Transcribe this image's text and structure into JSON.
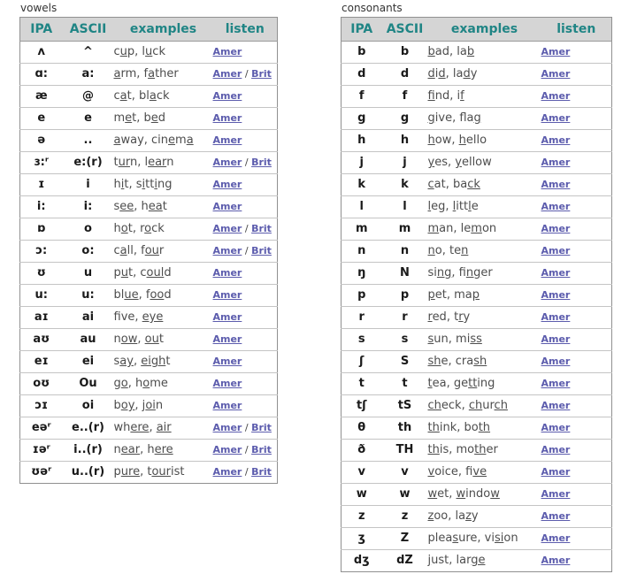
{
  "colors": {
    "header_bg": "#d5d5d5",
    "header_text": "#208585",
    "link": "#5c5cad",
    "example_text": "#4d4d4d",
    "symbol_text": "#1a1a1a",
    "outer_border": "#909090",
    "row_divider": "#c4c4c4",
    "label_text": "#333333"
  },
  "columns": [
    "IPA",
    "ASCII",
    "examples",
    "listen"
  ],
  "link_separator": "/",
  "listen_labels": {
    "american": "Amer",
    "british": "Brit"
  },
  "vowels": {
    "label": "vowels",
    "rows": [
      {
        "ipa": "ʌ",
        "ascii": "^",
        "examples": "c[u]p, l[u]ck",
        "listen": [
          "Amer"
        ]
      },
      {
        "ipa": "ɑ:",
        "ascii": "a:",
        "examples": "[a]rm, f[a]ther",
        "listen": [
          "Amer",
          "Brit"
        ]
      },
      {
        "ipa": "æ",
        "ascii": "@",
        "examples": "c[a]t, bl[a]ck",
        "listen": [
          "Amer"
        ]
      },
      {
        "ipa": "e",
        "ascii": "e",
        "examples": "m[e]t, b[e]d",
        "listen": [
          "Amer"
        ]
      },
      {
        "ipa": "ə",
        "ascii": "..",
        "examples": "[a]way, cin[e]m[a]",
        "listen": [
          "Amer"
        ]
      },
      {
        "ipa": "ɜ:ʳ",
        "ascii": "e:(r)",
        "examples": "t[ur]n, l[ear]n",
        "listen": [
          "Amer",
          "Brit"
        ]
      },
      {
        "ipa": "ɪ",
        "ascii": "i",
        "examples": "h[i]t, s[i]tt[i]ng",
        "listen": [
          "Amer"
        ]
      },
      {
        "ipa": "i:",
        "ascii": "i:",
        "examples": "s[ee], h[ea]t",
        "listen": [
          "Amer"
        ]
      },
      {
        "ipa": "ɒ",
        "ascii": "o",
        "examples": "h[o]t, r[o]ck",
        "listen": [
          "Amer",
          "Brit"
        ]
      },
      {
        "ipa": "ɔ:",
        "ascii": "o:",
        "examples": "c[a]ll, f[ou]r",
        "listen": [
          "Amer",
          "Brit"
        ]
      },
      {
        "ipa": "ʊ",
        "ascii": "u",
        "examples": "p[u]t, c[oul]d",
        "listen": [
          "Amer"
        ]
      },
      {
        "ipa": "u:",
        "ascii": "u:",
        "examples": "bl[ue], f[oo]d",
        "listen": [
          "Amer"
        ]
      },
      {
        "ipa": "aɪ",
        "ascii": "ai",
        "examples": "f[i]ve, [eye]",
        "listen": [
          "Amer"
        ]
      },
      {
        "ipa": "aʊ",
        "ascii": "au",
        "examples": "n[ow], [ou]t",
        "listen": [
          "Amer"
        ]
      },
      {
        "ipa": "eɪ",
        "ascii": "ei",
        "examples": "s[ay], [eigh]t",
        "listen": [
          "Amer"
        ]
      },
      {
        "ipa": "oʊ",
        "ascii": "Ou",
        "examples": "g[o], h[o]me",
        "listen": [
          "Amer"
        ]
      },
      {
        "ipa": "ɔɪ",
        "ascii": "oi",
        "examples": "b[oy], j[oi]n",
        "listen": [
          "Amer"
        ]
      },
      {
        "ipa": "eəʳ",
        "ascii": "e..(r)",
        "examples": "wh[ere], [air]",
        "listen": [
          "Amer",
          "Brit"
        ]
      },
      {
        "ipa": "ɪəʳ",
        "ascii": "i..(r)",
        "examples": "n[ear], h[ere]",
        "listen": [
          "Amer",
          "Brit"
        ]
      },
      {
        "ipa": "ʊəʳ",
        "ascii": "u..(r)",
        "examples": "p[ure], t[our]ist",
        "listen": [
          "Amer",
          "Brit"
        ]
      }
    ]
  },
  "consonants": {
    "label": "consonants",
    "rows": [
      {
        "ipa": "b",
        "ascii": "b",
        "examples": "[b]ad, la[b]",
        "listen": [
          "Amer"
        ]
      },
      {
        "ipa": "d",
        "ascii": "d",
        "examples": "[d]i[d], la[d]y",
        "listen": [
          "Amer"
        ]
      },
      {
        "ipa": "f",
        "ascii": "f",
        "examples": "[f]ind, i[f]",
        "listen": [
          "Amer"
        ]
      },
      {
        "ipa": "g",
        "ascii": "g",
        "examples": "[g]ive, fla[g]",
        "listen": [
          "Amer"
        ]
      },
      {
        "ipa": "h",
        "ascii": "h",
        "examples": "[h]ow, [h]ello",
        "listen": [
          "Amer"
        ]
      },
      {
        "ipa": "j",
        "ascii": "j",
        "examples": "[y]es, [y]ellow",
        "listen": [
          "Amer"
        ]
      },
      {
        "ipa": "k",
        "ascii": "k",
        "examples": "[c]at, ba[ck]",
        "listen": [
          "Amer"
        ]
      },
      {
        "ipa": "l",
        "ascii": "l",
        "examples": "[l]eg, [l]itt[l]e",
        "listen": [
          "Amer"
        ]
      },
      {
        "ipa": "m",
        "ascii": "m",
        "examples": "[m]an, le[m]on",
        "listen": [
          "Amer"
        ]
      },
      {
        "ipa": "n",
        "ascii": "n",
        "examples": "[n]o, te[n]",
        "listen": [
          "Amer"
        ]
      },
      {
        "ipa": "ŋ",
        "ascii": "N",
        "examples": "si[ng], fi[ng]er",
        "listen": [
          "Amer"
        ]
      },
      {
        "ipa": "p",
        "ascii": "p",
        "examples": "[p]et, ma[p]",
        "listen": [
          "Amer"
        ]
      },
      {
        "ipa": "r",
        "ascii": "r",
        "examples": "[r]ed, t[r]y",
        "listen": [
          "Amer"
        ]
      },
      {
        "ipa": "s",
        "ascii": "s",
        "examples": "[s]un, mi[ss]",
        "listen": [
          "Amer"
        ]
      },
      {
        "ipa": "ʃ",
        "ascii": "S",
        "examples": "[sh]e, cra[sh]",
        "listen": [
          "Amer"
        ]
      },
      {
        "ipa": "t",
        "ascii": "t",
        "examples": "[t]ea, ge[tt]ing",
        "listen": [
          "Amer"
        ]
      },
      {
        "ipa": "tʃ",
        "ascii": "tS",
        "examples": "[ch]eck, [ch]ur[ch]",
        "listen": [
          "Amer"
        ]
      },
      {
        "ipa": "θ",
        "ascii": "th",
        "examples": "[th]ink, bo[th]",
        "listen": [
          "Amer"
        ]
      },
      {
        "ipa": "ð",
        "ascii": "TH",
        "examples": "[th]is, mo[th]er",
        "listen": [
          "Amer"
        ]
      },
      {
        "ipa": "v",
        "ascii": "v",
        "examples": "[v]oice, fi[ve]",
        "listen": [
          "Amer"
        ]
      },
      {
        "ipa": "w",
        "ascii": "w",
        "examples": "[w]et, [w]indo[w]",
        "listen": [
          "Amer"
        ]
      },
      {
        "ipa": "z",
        "ascii": "z",
        "examples": "[z]oo, la[z]y",
        "listen": [
          "Amer"
        ]
      },
      {
        "ipa": "ʒ",
        "ascii": "Z",
        "examples": "plea[s]ure, vi[si]on",
        "listen": [
          "Amer"
        ]
      },
      {
        "ipa": "dʒ",
        "ascii": "dZ",
        "examples": "[j]ust, lar[ge]",
        "listen": [
          "Amer"
        ]
      }
    ]
  }
}
